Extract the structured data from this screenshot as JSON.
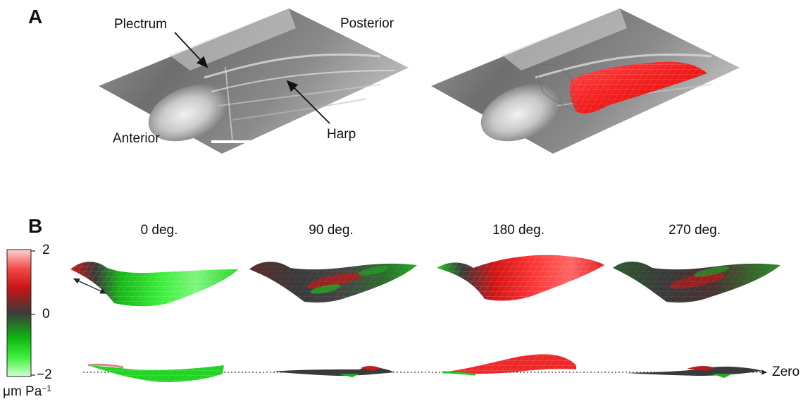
{
  "panels": {
    "a": {
      "letter": "A",
      "labels": {
        "plectrum": "Plectrum",
        "posterior": "Posterior",
        "anterior": "Anterior",
        "harp": "Harp"
      }
    },
    "b": {
      "letter": "B",
      "angles": [
        "0 deg.",
        "90 deg.",
        "180 deg.",
        "270 deg."
      ],
      "zero_label": "Zero",
      "colorbar": {
        "max": "2",
        "mid": "0",
        "min": "−2",
        "unit": "μm Pa",
        "unit_exp": "−1",
        "colors": {
          "high": "#ff9a9a",
          "red": "#e51d1d",
          "neutral": "#3b3b3b",
          "green": "#1ee21e",
          "low": "#b6ffb6"
        }
      }
    }
  }
}
